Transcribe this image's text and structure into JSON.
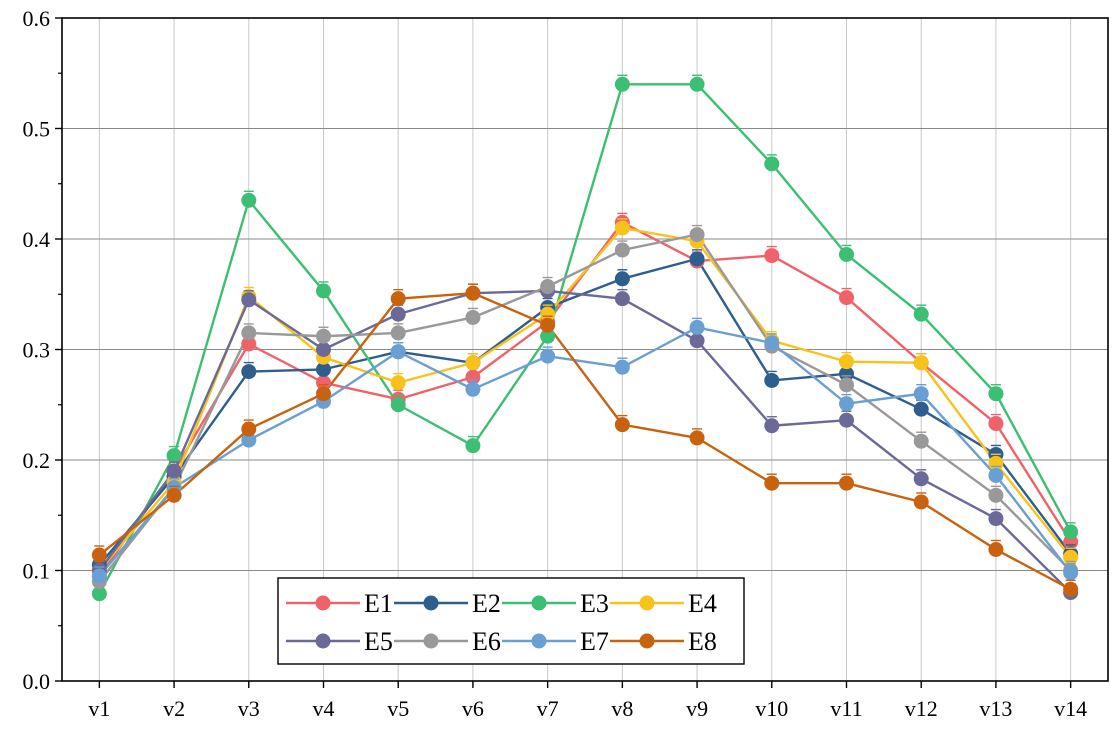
{
  "chart_data": {
    "type": "line",
    "title": "",
    "xlabel": "",
    "ylabel": "",
    "categories": [
      "v1",
      "v2",
      "v3",
      "v4",
      "v5",
      "v6",
      "v7",
      "v8",
      "v9",
      "v10",
      "v11",
      "v12",
      "v13",
      "v14"
    ],
    "ylim": [
      0,
      0.6
    ],
    "yticks": [
      "0.0",
      "0.1",
      "0.2",
      "0.3",
      "0.4",
      "0.5",
      "0.6"
    ],
    "grid": true,
    "legend_position": "bottom-left",
    "series": [
      {
        "name": "E1",
        "color": "#f0626a",
        "values": [
          0.095,
          0.19,
          0.305,
          0.27,
          0.255,
          0.275,
          0.325,
          0.415,
          0.38,
          0.385,
          0.347,
          0.288,
          0.233,
          0.126
        ]
      },
      {
        "name": "E2",
        "color": "#2e5e8e",
        "values": [
          0.105,
          0.185,
          0.28,
          0.282,
          0.298,
          0.288,
          0.338,
          0.364,
          0.382,
          0.272,
          0.278,
          0.246,
          0.205,
          0.115
        ]
      },
      {
        "name": "E3",
        "color": "#3cbf73",
        "values": [
          0.079,
          0.204,
          0.435,
          0.353,
          0.25,
          0.213,
          0.312,
          0.54,
          0.54,
          0.468,
          0.386,
          0.332,
          0.26,
          0.135
        ]
      },
      {
        "name": "E4",
        "color": "#f8c21c",
        "values": [
          0.1,
          0.18,
          0.348,
          0.293,
          0.27,
          0.288,
          0.332,
          0.41,
          0.398,
          0.308,
          0.289,
          0.288,
          0.197,
          0.112
        ]
      },
      {
        "name": "E5",
        "color": "#6a6998",
        "values": [
          0.1,
          0.19,
          0.345,
          0.3,
          0.332,
          0.351,
          0.353,
          0.346,
          0.308,
          0.231,
          0.236,
          0.183,
          0.147,
          0.08
        ]
      },
      {
        "name": "E6",
        "color": "#999999",
        "values": [
          0.09,
          0.175,
          0.315,
          0.312,
          0.315,
          0.329,
          0.357,
          0.39,
          0.404,
          0.303,
          0.268,
          0.217,
          0.168,
          0.1
        ]
      },
      {
        "name": "E7",
        "color": "#6a9fd4",
        "values": [
          0.095,
          0.175,
          0.218,
          0.253,
          0.298,
          0.264,
          0.294,
          0.284,
          0.32,
          0.306,
          0.251,
          0.26,
          0.186,
          0.098
        ]
      },
      {
        "name": "E8",
        "color": "#c8620f",
        "values": [
          0.114,
          0.168,
          0.228,
          0.26,
          0.346,
          0.351,
          0.322,
          0.232,
          0.22,
          0.179,
          0.179,
          0.162,
          0.119,
          0.083
        ]
      }
    ]
  }
}
